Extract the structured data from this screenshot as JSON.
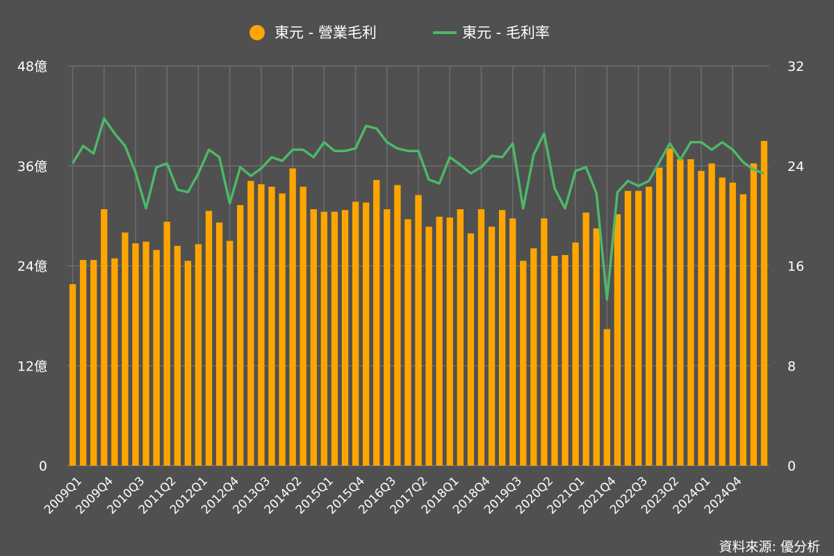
{
  "chart_data": {
    "type": "bar+line",
    "legend": {
      "position": "top",
      "bar_series_label": "東元 - 營業毛利",
      "line_series_label": "東元 - 毛利率"
    },
    "source": "資料來源: 優分析",
    "colors": {
      "background": "#505050",
      "bar": "#FFA500",
      "line": "#4DB86A",
      "grid": "#6e6e6e",
      "text": "#ffffff"
    },
    "grid": true,
    "y_left": {
      "ticks": [
        0,
        12,
        24,
        36,
        48
      ],
      "tick_labels": [
        "0",
        "12億",
        "24億",
        "36億",
        "48億"
      ],
      "range": [
        0,
        48
      ],
      "unit": "億"
    },
    "y_right": {
      "ticks": [
        0,
        8,
        16,
        24,
        32
      ],
      "tick_labels": [
        "0",
        "8",
        "16",
        "24",
        "32"
      ],
      "range": [
        0,
        32
      ]
    },
    "x_tick_labels": [
      "2009Q1",
      "2009Q4",
      "2010Q3",
      "2011Q2",
      "2012Q1",
      "2012Q4",
      "2013Q3",
      "2014Q2",
      "2015Q1",
      "2015Q4",
      "2016Q3",
      "2017Q2",
      "2018Q1",
      "2018Q4",
      "2019Q3",
      "2020Q2",
      "2021Q1",
      "2021Q4",
      "2022Q3",
      "2023Q2",
      "2024Q1",
      "2024Q4"
    ],
    "categories": [
      "2009Q1",
      "2009Q2",
      "2009Q3",
      "2009Q4",
      "2010Q1",
      "2010Q2",
      "2010Q3",
      "2010Q4",
      "2011Q1",
      "2011Q2",
      "2011Q3",
      "2011Q4",
      "2012Q1",
      "2012Q2",
      "2012Q3",
      "2012Q4",
      "2013Q1",
      "2013Q2",
      "2013Q3",
      "2013Q4",
      "2014Q1",
      "2014Q2",
      "2014Q3",
      "2014Q4",
      "2015Q1",
      "2015Q2",
      "2015Q3",
      "2015Q4",
      "2016Q1",
      "2016Q2",
      "2016Q3",
      "2016Q4",
      "2017Q1",
      "2017Q2",
      "2017Q3",
      "2017Q4",
      "2018Q1",
      "2018Q2",
      "2018Q3",
      "2018Q4",
      "2019Q1",
      "2019Q2",
      "2019Q3",
      "2019Q4",
      "2020Q1",
      "2020Q2",
      "2020Q3",
      "2020Q4",
      "2021Q1",
      "2021Q2",
      "2021Q3",
      "2021Q4",
      "2022Q1",
      "2022Q2",
      "2022Q3",
      "2022Q4",
      "2023Q1",
      "2023Q2",
      "2023Q3",
      "2023Q4",
      "2024Q1",
      "2024Q2",
      "2024Q3",
      "2024Q4",
      "2025Q1",
      "2025Q2",
      "2025Q3"
    ],
    "series": [
      {
        "name": "東元 - 營業毛利",
        "type": "bar",
        "axis": "left",
        "values": [
          21.8,
          24.7,
          24.7,
          30.8,
          24.9,
          28.0,
          26.7,
          26.9,
          25.9,
          29.3,
          26.4,
          24.6,
          26.6,
          30.6,
          29.2,
          27.0,
          31.3,
          34.2,
          33.8,
          33.5,
          32.7,
          35.7,
          33.5,
          30.8,
          30.5,
          30.5,
          30.7,
          31.7,
          31.6,
          34.3,
          30.8,
          33.7,
          29.6,
          32.5,
          28.7,
          29.9,
          29.8,
          30.8,
          27.9,
          30.8,
          28.7,
          30.7,
          29.7,
          24.6,
          26.1,
          29.7,
          25.2,
          25.3,
          26.8,
          30.4,
          28.5,
          16.4,
          30.2,
          33.0,
          33.0,
          33.5,
          35.8,
          38.1,
          36.8,
          36.8,
          35.4,
          36.3,
          34.6,
          34.0,
          32.6,
          36.3,
          39.0
        ]
      },
      {
        "name": "東元 - 毛利率",
        "type": "line",
        "axis": "right",
        "values": [
          24.2,
          25.6,
          25.0,
          27.8,
          26.6,
          25.6,
          23.5,
          20.6,
          23.9,
          24.2,
          22.1,
          21.9,
          23.4,
          25.3,
          24.7,
          21.0,
          23.9,
          23.2,
          23.8,
          24.7,
          24.4,
          25.3,
          25.3,
          24.7,
          25.9,
          25.2,
          25.2,
          25.4,
          27.2,
          27.0,
          25.9,
          25.4,
          25.2,
          25.2,
          22.9,
          22.6,
          24.7,
          24.1,
          23.4,
          23.9,
          24.8,
          24.7,
          25.8,
          20.6,
          24.9,
          26.6,
          22.2,
          20.6,
          23.6,
          23.9,
          21.8,
          13.3,
          21.9,
          22.8,
          22.4,
          22.8,
          24.3,
          25.8,
          24.5,
          25.9,
          25.9,
          25.3,
          25.9,
          25.3,
          24.3,
          23.7,
          23.4
        ]
      }
    ]
  }
}
